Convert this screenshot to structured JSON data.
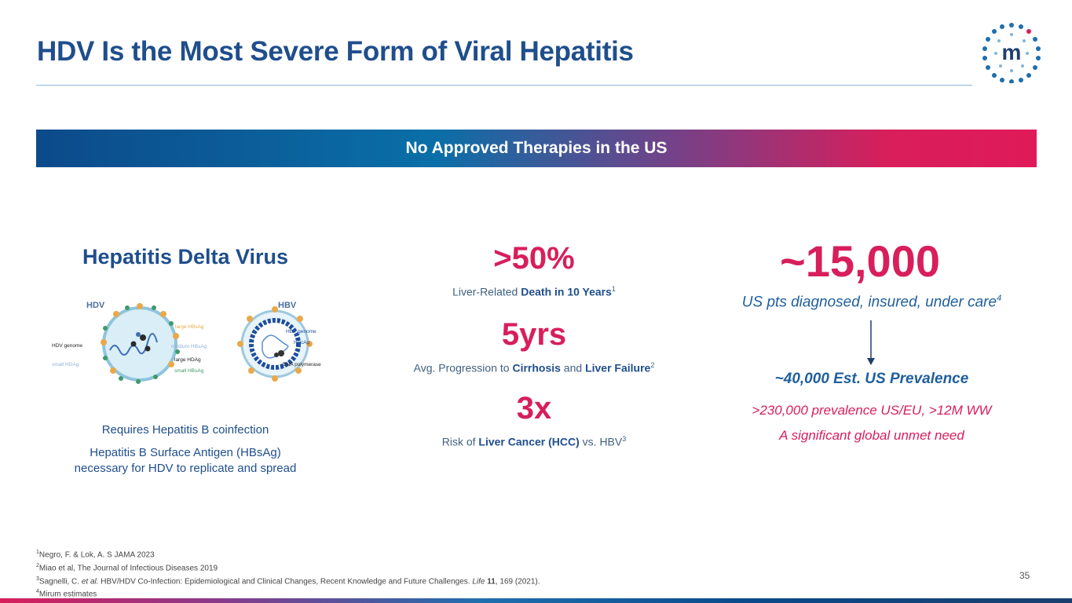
{
  "header": {
    "title": "HDV Is the Most Severe Form of Viral Hepatitis"
  },
  "banner": {
    "text": "No Approved Therapies in the US"
  },
  "left": {
    "heading": "Hepatitis Delta Virus",
    "diagram": {
      "hdv_label": "HDV",
      "hbv_label": "HBV",
      "labels": {
        "large_hbsag": "large HBsAg",
        "medium_hbsag": "medium HBsAg",
        "large_hdag": "large HDAg",
        "small_hbsag": "small HBsAg",
        "hdv_genome": "HDV genome",
        "small_hdag": "small HDAg",
        "hbv_genome": "HBV genome",
        "hbcag": "HBcAg",
        "dna_polymerase": "DNA polymerase"
      }
    },
    "note1": "Requires Hepatitis B coinfection",
    "note2_line1": "Hepatitis B Surface Antigen (HBsAg)",
    "note2_line2": "necessary for HDV to replicate and spread"
  },
  "middle": {
    "stat1": {
      "value": ">50%",
      "prefix": "Liver-Related ",
      "bold": "Death in 10 Years",
      "sup": "1"
    },
    "stat2": {
      "value": "5yrs",
      "prefix": "Avg. Progression to ",
      "bold1": "Cirrhosis",
      "mid": " and ",
      "bold2": "Liver Failure",
      "sup": "2"
    },
    "stat3": {
      "value": "3x",
      "prefix": "Risk of ",
      "bold": "Liver Cancer (HCC)",
      "suffix": " vs. HBV",
      "sup": "3"
    }
  },
  "right": {
    "big_value": "~15,000",
    "sub": "US pts diagnosed, insured, under care",
    "sub_sup": "4",
    "prevalence": "~40,000 Est. US Prevalence",
    "line1": ">230,000 prevalence US/EU, >12M WW",
    "line2": "A significant global unmet need"
  },
  "footnotes": {
    "f1_sup": "1",
    "f1": "Negro, F. & Lok, A. S JAMA 2023",
    "f2_sup": "2",
    "f2": "Miao et al, The Journal of Infectious Diseases 2019",
    "f3_sup": "3",
    "f3_a": "Sagnelli, C. ",
    "f3_italic": "et al.",
    "f3_b": " HBV/HDV Co-Infection: Epidemiological and Clinical Changes, Recent Knowledge and Future Challenges. ",
    "f3_journal": "Life",
    "f3_vol": "11",
    "f3_c": ", 169 (2021).",
    "f4_sup": "4",
    "f4": "Mirum estimates"
  },
  "page_number": "35",
  "colors": {
    "navy": "#1f4e8c",
    "magenta": "#d81e5b",
    "teal": "#0a6fa8"
  }
}
